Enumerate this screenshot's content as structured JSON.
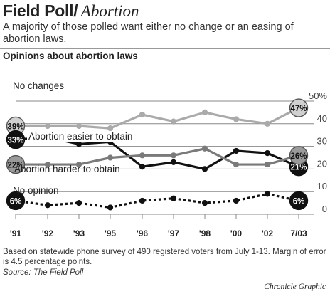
{
  "header": {
    "title": "Field Poll/",
    "topic": "Abortion",
    "subtitle": "A majority of those polled want either no change or an easing of abortion laws."
  },
  "footer": {
    "note": "Based on statewide phone survey of 490 registered voters from July 1-13. Margin of error is 4.5 percentage points.",
    "source": "Source: The Field Poll",
    "credit": "Chronicle Graphic"
  },
  "chart_data": {
    "type": "line",
    "title": "Opinions about abortion laws",
    "categories": [
      "'91",
      "'92",
      "'93",
      "'95",
      "'96",
      "'97",
      "'98",
      "'00",
      "'02",
      "7/03"
    ],
    "ylim": [
      0,
      50
    ],
    "yticks": [
      0,
      10,
      20,
      30,
      40,
      50
    ],
    "ytick_labels": [
      "0",
      "10",
      "20",
      "30",
      "40",
      "50%"
    ],
    "grid": "horizontal",
    "series": [
      {
        "name": "No changes",
        "values": [
          39,
          39,
          39,
          38,
          44,
          41,
          45,
          42,
          40,
          47
        ],
        "color": "#aaaaaa",
        "style": "solid",
        "marker_color": "#d0d0d0",
        "start_label": "39%",
        "end_label": "47%"
      },
      {
        "name": "Abortion easier to obtain",
        "values": [
          33,
          34,
          31,
          32,
          21,
          23,
          20,
          28,
          27,
          21
        ],
        "color": "#111111",
        "style": "solid",
        "marker_color": "#111111",
        "start_label": "33%",
        "end_label": "21%"
      },
      {
        "name": "Abortion harder to obtain",
        "values": [
          22,
          22,
          22,
          25,
          26,
          26,
          29,
          22,
          22,
          26
        ],
        "color": "#7a7a7a",
        "style": "solid",
        "marker_color": "#9a9a9a",
        "start_label": "22%",
        "end_label": "26%"
      },
      {
        "name": "No opinion",
        "values": [
          6,
          4,
          5,
          3,
          6,
          7,
          5,
          6,
          9,
          6
        ],
        "color": "#111111",
        "style": "dotted",
        "marker_color": "#111111",
        "start_label": "6%",
        "end_label": "6%"
      }
    ]
  }
}
